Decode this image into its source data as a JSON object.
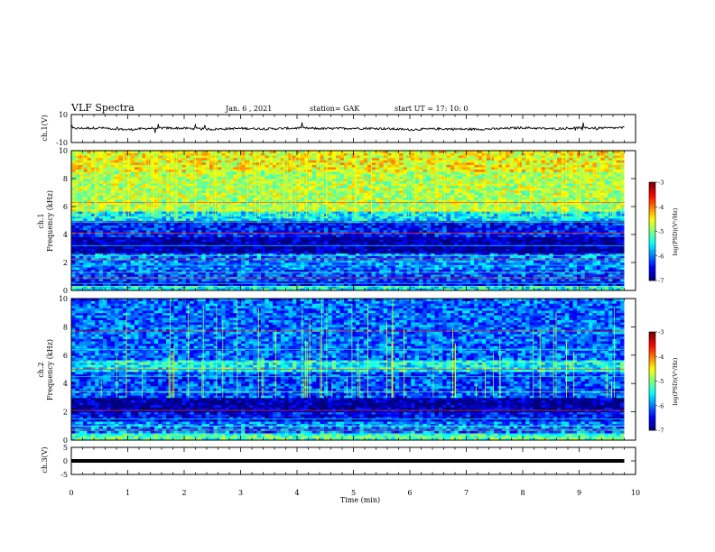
{
  "header": {
    "title": "VLF Spectra",
    "date": "Jan. 6 , 2021",
    "station": "station= GAK",
    "start": "start UT =  17: 10: 0"
  },
  "colors": {
    "jet": [
      "#00007f",
      "#0000ff",
      "#007fff",
      "#00ffff",
      "#7fff7f",
      "#ffff00",
      "#ff7f00",
      "#ff0000",
      "#7f0000"
    ],
    "line": "#000000"
  },
  "chart_data": [
    {
      "type": "line",
      "name": "ch1-waveform",
      "ylabel": "ch.1(V)",
      "ylim": [
        -10,
        10
      ],
      "y_ticks": [
        "10",
        "-10"
      ],
      "x": [
        0,
        0.5,
        1,
        1.5,
        2,
        2.5,
        3,
        3.5,
        4,
        4.5,
        5,
        5.5,
        6,
        6.5,
        7,
        7.5,
        8,
        8.5,
        9,
        9.5,
        9.8
      ],
      "y": [
        0,
        0.5,
        -0.8,
        0.4,
        0.2,
        -0.5,
        0.1,
        -0.2,
        0.3,
        -0.1,
        0.2,
        0.0,
        -0.8,
        -0.2,
        -0.5,
        -0.3,
        0.6,
        -0.2,
        0.5,
        0.3,
        0.6
      ]
    },
    {
      "type": "heatmap",
      "name": "ch1-spectrogram",
      "ylabel": "ch.1\nFrequency  (kHz)",
      "ylabel_line1": "ch.1",
      "ylabel_line2": "Frequency  (kHz)",
      "ylim": [
        0,
        10
      ],
      "y_ticks": [
        "0",
        "2",
        "4",
        "6",
        "8",
        "10"
      ],
      "xlim": [
        0,
        9.8
      ],
      "colorbar": {
        "label": "log(PSD)(V²/Hz)",
        "range": [
          -7,
          -3
        ],
        "ticks": [
          "-3",
          "-4",
          "-5",
          "-6",
          "-7"
        ]
      },
      "bands_kHz_to_log_psd": [
        {
          "from": 0,
          "to": 0.4,
          "value": -5.5
        },
        {
          "from": 0.4,
          "to": 0.6,
          "value": -6.5
        },
        {
          "from": 0.6,
          "to": 1.5,
          "value": -6.2
        },
        {
          "from": 1.5,
          "to": 2.7,
          "value": -6.0
        },
        {
          "from": 2.7,
          "to": 3.8,
          "value": -6.9
        },
        {
          "from": 3.8,
          "to": 5.0,
          "value": -6.4
        },
        {
          "from": 5.0,
          "to": 5.6,
          "value": -5.6
        },
        {
          "from": 5.6,
          "to": 8.5,
          "value": -4.8
        },
        {
          "from": 8.5,
          "to": 10,
          "value": -4.5
        }
      ]
    },
    {
      "type": "heatmap",
      "name": "ch2-spectrogram",
      "ylabel": "ch.2\nFrequency  (kHz)",
      "ylabel_line1": "ch.2",
      "ylabel_line2": "Frequency  (kHz)",
      "ylim": [
        0,
        10
      ],
      "y_ticks": [
        "0",
        "2",
        "4",
        "6",
        "8",
        "10"
      ],
      "xlim": [
        0,
        9.8
      ],
      "colorbar": {
        "label": "log(PSD)(V²/Hz)",
        "range": [
          -7,
          -3
        ],
        "ticks": [
          "-3",
          "-4",
          "-5",
          "-6",
          "-7"
        ]
      },
      "bands_kHz_to_log_psd": [
        {
          "from": 0,
          "to": 0.5,
          "value": -5.2
        },
        {
          "from": 0.5,
          "to": 1.3,
          "value": -6.0
        },
        {
          "from": 1.3,
          "to": 2.0,
          "value": -6.5
        },
        {
          "from": 2.0,
          "to": 3.0,
          "value": -6.9
        },
        {
          "from": 3.0,
          "to": 4.8,
          "value": -6.2
        },
        {
          "from": 4.8,
          "to": 5.6,
          "value": -5.5
        },
        {
          "from": 5.6,
          "to": 10,
          "value": -6.1
        }
      ]
    },
    {
      "type": "line",
      "name": "ch3-waveform",
      "ylabel": "ch.3(V)",
      "ylim": [
        -5,
        5
      ],
      "y_ticks": [
        "5",
        "0",
        "-5"
      ],
      "x": [
        0,
        9.8
      ],
      "y": [
        0,
        0
      ]
    }
  ],
  "x_axis": {
    "label": "Time  (min)",
    "lim": [
      0,
      10
    ],
    "ticks": [
      "0",
      "1",
      "2",
      "3",
      "4",
      "5",
      "6",
      "7",
      "8",
      "9",
      "10"
    ]
  }
}
